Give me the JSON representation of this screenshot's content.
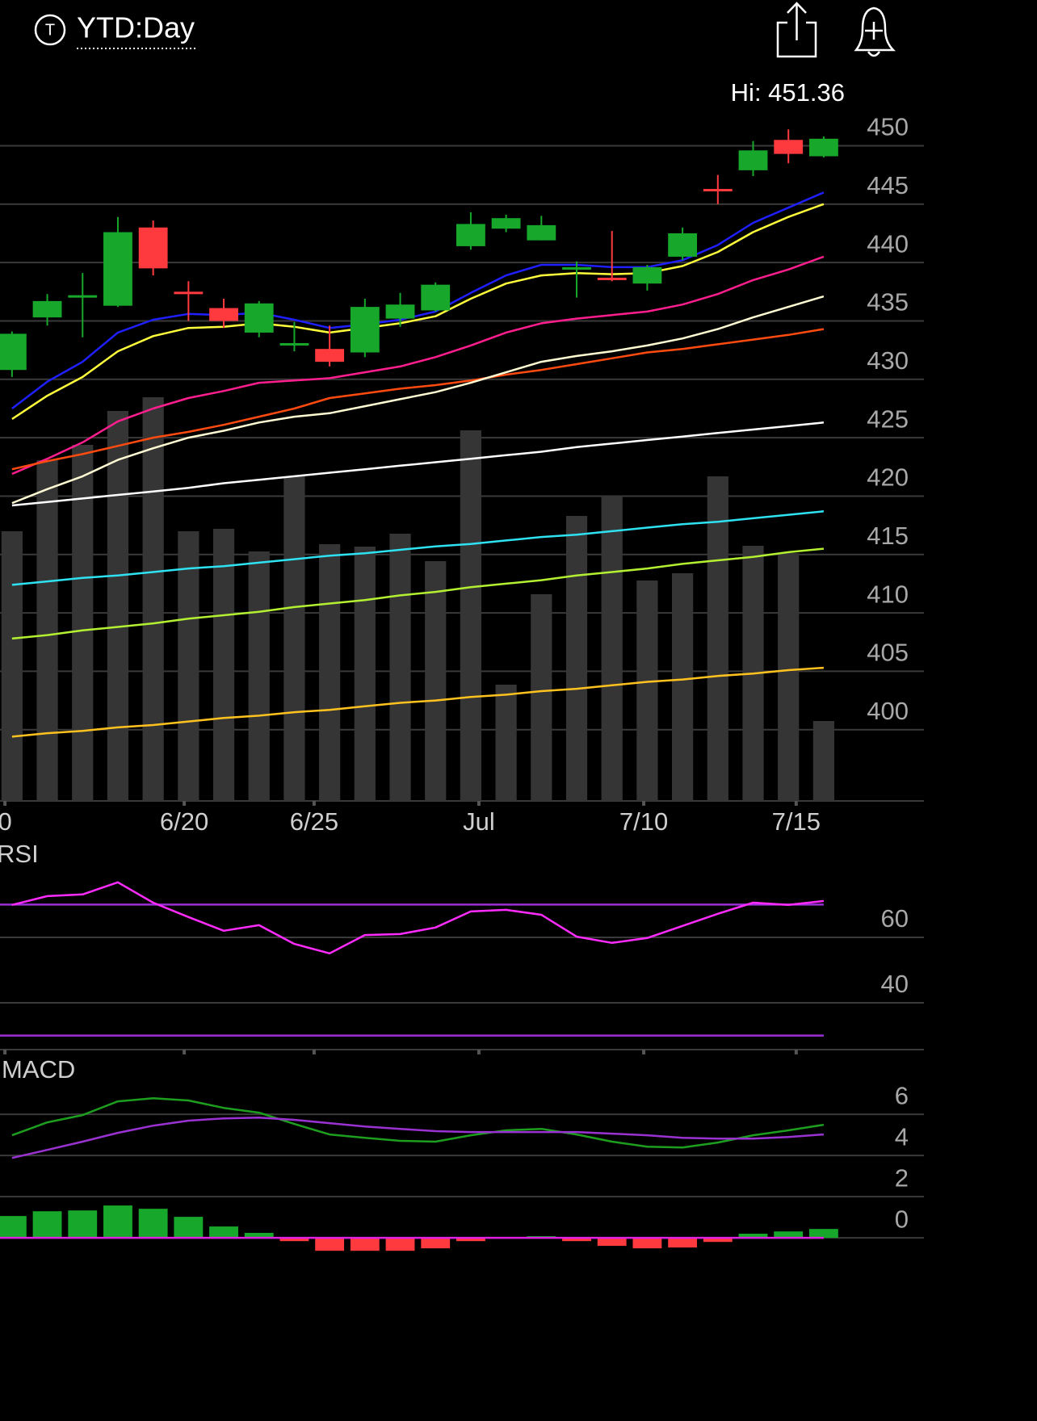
{
  "header": {
    "icon": "T",
    "title": "YTD:Day"
  },
  "chart_data": [
    {
      "type": "candlestick",
      "annotation": "Hi: 451.36",
      "x": [
        0,
        1,
        2,
        3,
        4,
        5,
        6,
        7,
        8,
        9,
        10,
        11,
        12,
        13,
        14,
        15,
        16,
        17,
        18,
        19,
        20,
        21,
        22,
        23
      ],
      "xlim": [
        -0.34,
        25.84
      ],
      "xticks": [
        {
          "value": -0.2,
          "label": "0"
        },
        {
          "value": 4.88,
          "label": "6/20"
        },
        {
          "value": 8.56,
          "label": "6/25"
        },
        {
          "value": 13.23,
          "label": "Jul"
        },
        {
          "value": 17.9,
          "label": "7/10"
        },
        {
          "value": 22.22,
          "label": "7/15"
        }
      ],
      "ylim": [
        393.9,
        452.8
      ],
      "yticks": [
        400,
        405,
        410,
        415,
        420,
        425,
        430,
        435,
        440,
        445,
        450
      ],
      "grid": true,
      "open": [
        430.8,
        435.3,
        437.0,
        436.3,
        443.0,
        437.5,
        436.1,
        434.0,
        433.0,
        432.6,
        432.3,
        435.2,
        435.9,
        441.4,
        442.9,
        441.9,
        439.5,
        438.7,
        438.2,
        440.5,
        446.3,
        447.9,
        450.5,
        449.1
      ],
      "high": [
        434.1,
        437.3,
        439.1,
        443.9,
        443.6,
        438.4,
        436.9,
        436.7,
        434.9,
        434.6,
        436.9,
        437.4,
        438.3,
        444.3,
        444.1,
        444.0,
        440.1,
        442.7,
        439.8,
        443.0,
        447.5,
        450.4,
        451.4,
        450.8
      ],
      "low": [
        430.2,
        434.6,
        433.6,
        436.2,
        438.9,
        435.0,
        434.4,
        433.6,
        432.4,
        431.1,
        431.9,
        434.5,
        435.8,
        441.1,
        442.6,
        441.9,
        437.0,
        438.4,
        437.6,
        440.2,
        445.0,
        447.4,
        448.5,
        449.0
      ],
      "close": [
        433.9,
        436.7,
        437.2,
        442.6,
        439.5,
        437.3,
        435.0,
        436.5,
        433.1,
        431.5,
        436.2,
        436.4,
        438.1,
        443.3,
        443.8,
        443.2,
        439.6,
        438.6,
        439.6,
        442.5,
        446.2,
        449.6,
        449.3,
        450.6
      ],
      "up_color": "#17a82b",
      "down_color": "#ff3a3e",
      "volume": [
        334,
        422,
        441,
        483,
        500,
        334,
        337,
        309,
        402,
        318,
        315,
        331,
        297,
        459,
        144,
        256,
        353,
        378,
        273,
        282,
        402,
        316,
        307,
        99
      ],
      "vlim": [
        0,
        852
      ],
      "volume_color": "#353535",
      "series": [
        {
          "color": "#1f1fff",
          "values": [
            427.5,
            429.8,
            431.5,
            434.0,
            435.1,
            435.6,
            435.5,
            435.7,
            435.1,
            434.4,
            434.7,
            435.1,
            435.8,
            437.4,
            438.9,
            439.8,
            439.8,
            439.6,
            439.6,
            440.2,
            441.5,
            443.4,
            444.7,
            446.0
          ]
        },
        {
          "color": "#ffff3c",
          "values": [
            426.6,
            428.6,
            430.2,
            432.4,
            433.7,
            434.4,
            434.5,
            434.8,
            434.5,
            434.0,
            434.4,
            434.8,
            435.4,
            436.9,
            438.2,
            438.9,
            439.1,
            439.0,
            439.1,
            439.7,
            440.9,
            442.6,
            443.9,
            445.0
          ]
        },
        {
          "color": "#ff1e8e",
          "values": [
            421.9,
            423.2,
            424.6,
            426.4,
            427.5,
            428.4,
            429.0,
            429.7,
            429.9,
            430.1,
            430.6,
            431.1,
            431.9,
            432.9,
            434.0,
            434.8,
            435.2,
            435.5,
            435.8,
            436.4,
            437.3,
            438.5,
            439.4,
            440.5
          ]
        },
        {
          "color": "#ff4a10",
          "values": [
            422.3,
            423.0,
            423.6,
            424.3,
            425.0,
            425.5,
            426.1,
            426.8,
            427.5,
            428.4,
            428.8,
            429.2,
            429.5,
            429.9,
            430.4,
            430.8,
            431.3,
            431.8,
            432.3,
            432.6,
            433.0,
            433.4,
            433.8,
            434.3
          ]
        },
        {
          "color": "#fffbd2",
          "values": [
            419.4,
            420.6,
            421.7,
            423.1,
            424.1,
            425.0,
            425.6,
            426.3,
            426.8,
            427.1,
            427.7,
            428.3,
            428.9,
            429.7,
            430.6,
            431.5,
            432.0,
            432.4,
            432.9,
            433.5,
            434.3,
            435.3,
            436.2,
            437.1
          ]
        },
        {
          "color": "#ffffff",
          "values": [
            419.2,
            419.5,
            419.8,
            420.1,
            420.4,
            420.7,
            421.1,
            421.4,
            421.7,
            422.0,
            422.3,
            422.6,
            422.9,
            423.2,
            423.5,
            423.8,
            424.2,
            424.5,
            424.8,
            425.1,
            425.4,
            425.7,
            426.0,
            426.3
          ]
        },
        {
          "color": "#2ee2f2",
          "values": [
            412.4,
            412.7,
            413.0,
            413.2,
            413.5,
            413.8,
            414.0,
            414.3,
            414.6,
            414.9,
            415.1,
            415.4,
            415.7,
            415.9,
            416.2,
            416.5,
            416.7,
            417.0,
            417.3,
            417.6,
            417.8,
            418.1,
            418.4,
            418.7
          ]
        },
        {
          "color": "#b4f032",
          "values": [
            407.8,
            408.1,
            408.5,
            408.8,
            409.1,
            409.5,
            409.8,
            410.1,
            410.5,
            410.8,
            411.1,
            411.5,
            411.8,
            412.2,
            412.5,
            412.8,
            413.2,
            413.5,
            413.8,
            414.2,
            414.5,
            414.8,
            415.2,
            415.5
          ]
        },
        {
          "color": "#ffc21e",
          "values": [
            399.4,
            399.7,
            399.9,
            400.2,
            400.4,
            400.7,
            401.0,
            401.2,
            401.5,
            401.7,
            402.0,
            402.3,
            402.5,
            402.8,
            403.0,
            403.3,
            403.5,
            403.8,
            404.1,
            404.3,
            404.6,
            404.8,
            405.1,
            405.3
          ]
        }
      ]
    },
    {
      "type": "line",
      "title": "RSI",
      "ylim": [
        25.7,
        88.6
      ],
      "yticks": [
        40,
        60
      ],
      "grid": true,
      "levels": [
        70,
        30
      ],
      "level_color": "#9b2fd6",
      "series": [
        {
          "color": "#ff2cff",
          "values": [
            69.9,
            72.6,
            73.1,
            76.8,
            70.6,
            66.2,
            62.0,
            63.7,
            58.0,
            55.1,
            60.7,
            61.0,
            63.0,
            67.9,
            68.4,
            66.9,
            60.2,
            58.3,
            59.8,
            63.5,
            67.2,
            70.6,
            69.9,
            71.1
          ]
        }
      ]
    },
    {
      "type": "macd",
      "title": "MACD",
      "ylim": [
        -1.25,
        8.75
      ],
      "yticks": [
        0,
        2,
        4,
        6
      ],
      "grid": true,
      "zero_line_color": "#e020e0",
      "series": [
        {
          "color": "#1e9e1e",
          "values": [
            4.98,
            5.61,
            5.96,
            6.63,
            6.78,
            6.67,
            6.31,
            6.08,
            5.53,
            5.02,
            4.86,
            4.71,
            4.67,
            4.98,
            5.22,
            5.29,
            5.02,
            4.67,
            4.43,
            4.39,
            4.63,
            4.98,
            5.22,
            5.49
          ]
        },
        {
          "color": "#9a32d2",
          "values": [
            3.88,
            4.27,
            4.67,
            5.1,
            5.45,
            5.69,
            5.8,
            5.84,
            5.73,
            5.57,
            5.41,
            5.29,
            5.18,
            5.14,
            5.14,
            5.14,
            5.14,
            5.06,
            4.98,
            4.86,
            4.82,
            4.82,
            4.9,
            5.02
          ]
        }
      ],
      "histogram": [
        1.06,
        1.29,
        1.33,
        1.57,
        1.41,
        1.02,
        0.55,
        0.24,
        -0.16,
        -0.63,
        -0.63,
        -0.63,
        -0.51,
        -0.16,
        0.04,
        0.08,
        -0.16,
        -0.39,
        -0.51,
        -0.47,
        -0.2,
        0.2,
        0.31,
        0.43
      ],
      "up_color": "#17a82b",
      "down_color": "#ff3a3e"
    }
  ]
}
